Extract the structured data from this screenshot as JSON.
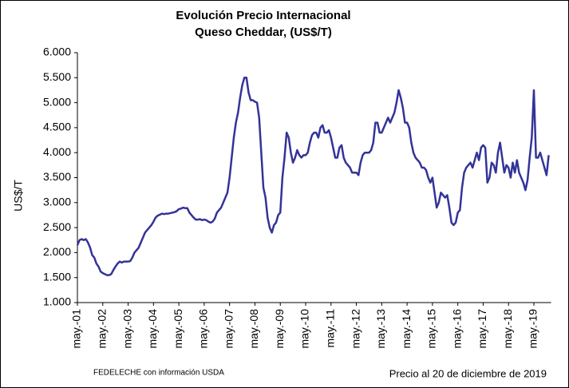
{
  "chart_data": {
    "type": "line",
    "title": [
      "Evolución Precio Internacional",
      "Queso Cheddar, (US$/T)"
    ],
    "y_label": "US$/T",
    "notes": [
      "FEDELECHE con información USDA",
      "Precio al 20 de diciembre de 2019"
    ],
    "categories": [
      "may.-01",
      null,
      null,
      null,
      null,
      null,
      null,
      null,
      null,
      null,
      null,
      null,
      "may.-02",
      null,
      null,
      null,
      null,
      null,
      null,
      null,
      null,
      null,
      null,
      null,
      "may.-03",
      null,
      null,
      null,
      null,
      null,
      null,
      null,
      null,
      null,
      null,
      null,
      "may.-04",
      null,
      null,
      null,
      null,
      null,
      null,
      null,
      null,
      null,
      null,
      null,
      "may.-05",
      null,
      null,
      null,
      null,
      null,
      null,
      null,
      null,
      null,
      null,
      null,
      "may.-06",
      null,
      null,
      null,
      null,
      null,
      null,
      null,
      null,
      null,
      null,
      null,
      "may.-07",
      null,
      null,
      null,
      null,
      null,
      null,
      null,
      null,
      null,
      null,
      null,
      "may.-08",
      null,
      null,
      null,
      null,
      null,
      null,
      null,
      null,
      null,
      null,
      null,
      "may.-09",
      null,
      null,
      null,
      null,
      null,
      null,
      null,
      null,
      null,
      null,
      null,
      "may.-10",
      null,
      null,
      null,
      null,
      null,
      null,
      null,
      null,
      null,
      null,
      null,
      "may.-11",
      null,
      null,
      null,
      null,
      null,
      null,
      null,
      null,
      null,
      null,
      null,
      "may.-12",
      null,
      null,
      null,
      null,
      null,
      null,
      null,
      null,
      null,
      null,
      null,
      "may.-13",
      null,
      null,
      null,
      null,
      null,
      null,
      null,
      null,
      null,
      null,
      null,
      "may.-14",
      null,
      null,
      null,
      null,
      null,
      null,
      null,
      null,
      null,
      null,
      null,
      "may.-15",
      null,
      null,
      null,
      null,
      null,
      null,
      null,
      null,
      null,
      null,
      null,
      "may.-16",
      null,
      null,
      null,
      null,
      null,
      null,
      null,
      null,
      null,
      null,
      null,
      "may.-17",
      null,
      null,
      null,
      null,
      null,
      null,
      null,
      null,
      null,
      null,
      null,
      "may.-18",
      null,
      null,
      null,
      null,
      null,
      null,
      null,
      null,
      null,
      null,
      null,
      "may.-19",
      null,
      null,
      null,
      null,
      null,
      null,
      null
    ],
    "series": [
      {
        "color": "#333399",
        "values": [
          2150,
          2250,
          2270,
          2250,
          2270,
          2200,
          2100,
          1950,
          1900,
          1780,
          1720,
          1620,
          1590,
          1570,
          1550,
          1550,
          1570,
          1650,
          1720,
          1780,
          1820,
          1800,
          1820,
          1820,
          1820,
          1830,
          1900,
          2000,
          2050,
          2100,
          2200,
          2300,
          2400,
          2450,
          2500,
          2550,
          2620,
          2700,
          2740,
          2760,
          2780,
          2770,
          2780,
          2780,
          2790,
          2800,
          2810,
          2830,
          2870,
          2880,
          2900,
          2890,
          2890,
          2800,
          2750,
          2700,
          2660,
          2660,
          2670,
          2650,
          2660,
          2650,
          2620,
          2600,
          2620,
          2680,
          2800,
          2850,
          2900,
          3000,
          3100,
          3200,
          3500,
          3900,
          4300,
          4600,
          4800,
          5100,
          5350,
          5500,
          5500,
          5200,
          5050,
          5050,
          5020,
          5000,
          4700,
          4000,
          3300,
          3100,
          2700,
          2500,
          2400,
          2550,
          2600,
          2750,
          2800,
          3500,
          3900,
          4400,
          4300,
          4000,
          3800,
          3900,
          4050,
          3950,
          3900,
          3950,
          3950,
          4000,
          4200,
          4350,
          4400,
          4400,
          4300,
          4500,
          4550,
          4400,
          4400,
          4450,
          4300,
          4100,
          3900,
          3900,
          4100,
          4150,
          3900,
          3800,
          3750,
          3700,
          3600,
          3600,
          3600,
          3550,
          3800,
          3950,
          4000,
          4000,
          4000,
          4050,
          4200,
          4600,
          4600,
          4400,
          4400,
          4500,
          4600,
          4700,
          4600,
          4700,
          4800,
          5000,
          5250,
          5100,
          4900,
          4600,
          4600,
          4500,
          4200,
          4000,
          3900,
          3850,
          3800,
          3700,
          3700,
          3650,
          3500,
          3400,
          3500,
          3200,
          2900,
          3000,
          3200,
          3150,
          3100,
          3150,
          2900,
          2600,
          2550,
          2600,
          2800,
          2850,
          3300,
          3600,
          3700,
          3750,
          3800,
          3700,
          3850,
          4000,
          3850,
          4100,
          4150,
          4100,
          3400,
          3500,
          3800,
          3750,
          3600,
          4000,
          4200,
          3900,
          3600,
          3750,
          3700,
          3500,
          3800,
          3600,
          3850,
          3600,
          3500,
          3400,
          3250,
          3450,
          3900,
          4300,
          5250,
          3900,
          3900,
          4000,
          3850,
          3700,
          3550,
          3950
        ]
      }
    ],
    "ylim": [
      1000,
      6000
    ],
    "yticks": [
      {
        "value": 1000,
        "label": "1.000"
      },
      {
        "value": 1500,
        "label": "1.500"
      },
      {
        "value": 2000,
        "label": "2.000"
      },
      {
        "value": 2500,
        "label": "2.500"
      },
      {
        "value": 3000,
        "label": "3.000"
      },
      {
        "value": 3500,
        "label": "3.500"
      },
      {
        "value": 4000,
        "label": "4.000"
      },
      {
        "value": 4500,
        "label": "4.500"
      },
      {
        "value": 5000,
        "label": "5.000"
      },
      {
        "value": 5500,
        "label": "5.500"
      },
      {
        "value": 6000,
        "label": "6.000"
      }
    ]
  }
}
